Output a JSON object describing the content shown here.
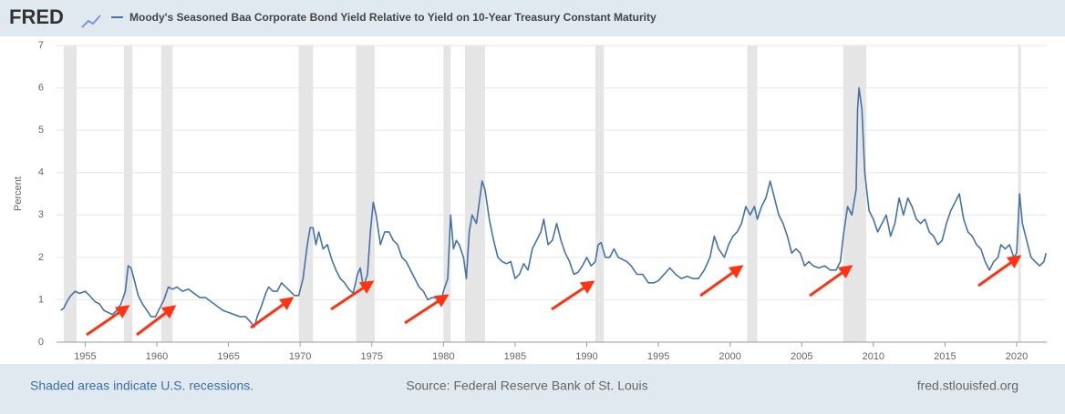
{
  "logo": "FRED",
  "chart_data": {
    "type": "line",
    "title": "Moody's Seasoned Baa Corporate Bond Yield Relative to Yield on 10-Year Treasury Constant Maturity",
    "ylabel": "Percent",
    "color": "#4572a7",
    "recession_color": "#e5e5e5",
    "xlim": [
      1953.0,
      2022.1
    ],
    "ylim": [
      0,
      7
    ],
    "xticks": [
      1955,
      1960,
      1965,
      1970,
      1975,
      1980,
      1985,
      1990,
      1995,
      2000,
      2005,
      2010,
      2015,
      2020
    ],
    "yticks": [
      0,
      1,
      2,
      3,
      4,
      5,
      6,
      7
    ],
    "grid": true,
    "recessions": [
      [
        1953.5,
        1954.4
      ],
      [
        1957.7,
        1958.3
      ],
      [
        1960.3,
        1961.1
      ],
      [
        1969.9,
        1970.9
      ],
      [
        1973.9,
        1975.2
      ],
      [
        1980.0,
        1980.5
      ],
      [
        1981.5,
        1982.9
      ],
      [
        1990.6,
        1991.2
      ],
      [
        2001.2,
        2001.9
      ],
      [
        2007.9,
        2009.5
      ],
      [
        2020.1,
        2020.3
      ]
    ],
    "x": [
      1953.3,
      1953.5,
      1953.8,
      1954.0,
      1954.3,
      1954.6,
      1955.0,
      1955.3,
      1955.7,
      1956.0,
      1956.3,
      1956.6,
      1956.9,
      1957.2,
      1957.5,
      1957.8,
      1958.0,
      1958.2,
      1958.4,
      1958.7,
      1959.0,
      1959.3,
      1959.6,
      1959.9,
      1960.2,
      1960.5,
      1960.8,
      1961.1,
      1961.4,
      1961.8,
      1962.2,
      1962.6,
      1963.0,
      1963.4,
      1963.8,
      1964.2,
      1964.6,
      1965.0,
      1965.4,
      1965.8,
      1966.2,
      1966.6,
      1966.8,
      1967.0,
      1967.3,
      1967.6,
      1967.8,
      1968.1,
      1968.4,
      1968.7,
      1969.0,
      1969.3,
      1969.6,
      1969.9,
      1970.2,
      1970.5,
      1970.7,
      1970.9,
      1971.1,
      1971.3,
      1971.6,
      1971.9,
      1972.2,
      1972.5,
      1972.8,
      1973.1,
      1973.4,
      1973.7,
      1974.0,
      1974.2,
      1974.4,
      1974.7,
      1974.9,
      1975.1,
      1975.3,
      1975.6,
      1975.9,
      1976.2,
      1976.5,
      1976.8,
      1977.1,
      1977.4,
      1977.7,
      1978.0,
      1978.3,
      1978.6,
      1978.9,
      1979.2,
      1979.5,
      1979.8,
      1980.0,
      1980.3,
      1980.5,
      1980.7,
      1980.9,
      1981.1,
      1981.4,
      1981.6,
      1981.8,
      1982.0,
      1982.3,
      1982.5,
      1982.7,
      1982.9,
      1983.2,
      1983.5,
      1983.8,
      1984.1,
      1984.4,
      1984.7,
      1985.0,
      1985.3,
      1985.6,
      1985.9,
      1986.2,
      1986.5,
      1986.8,
      1987.0,
      1987.3,
      1987.6,
      1987.9,
      1988.2,
      1988.5,
      1988.8,
      1989.1,
      1989.4,
      1989.7,
      1990.0,
      1990.3,
      1990.6,
      1990.8,
      1991.0,
      1991.3,
      1991.6,
      1991.9,
      1992.2,
      1992.5,
      1992.8,
      1993.1,
      1993.5,
      1993.9,
      1994.3,
      1994.7,
      1995.0,
      1995.4,
      1995.8,
      1996.2,
      1996.6,
      1997.0,
      1997.4,
      1997.8,
      1998.2,
      1998.6,
      1998.9,
      1999.2,
      1999.6,
      1999.9,
      2000.2,
      2000.5,
      2000.8,
      2001.1,
      2001.4,
      2001.7,
      2001.9,
      2002.2,
      2002.5,
      2002.8,
      2003.1,
      2003.4,
      2003.7,
      2004.0,
      2004.3,
      2004.6,
      2004.9,
      2005.2,
      2005.5,
      2005.8,
      2006.2,
      2006.6,
      2007.0,
      2007.4,
      2007.7,
      2007.9,
      2008.2,
      2008.5,
      2008.8,
      2008.9,
      2009.0,
      2009.2,
      2009.4,
      2009.7,
      2010.0,
      2010.3,
      2010.6,
      2010.9,
      2011.2,
      2011.5,
      2011.8,
      2012.1,
      2012.4,
      2012.7,
      2013.0,
      2013.3,
      2013.6,
      2013.9,
      2014.2,
      2014.5,
      2014.8,
      2015.1,
      2015.4,
      2015.7,
      2016.0,
      2016.3,
      2016.6,
      2016.9,
      2017.2,
      2017.5,
      2017.8,
      2018.1,
      2018.4,
      2018.7,
      2018.9,
      2019.2,
      2019.5,
      2019.8,
      2020.0,
      2020.2,
      2020.4,
      2020.7,
      2021.0,
      2021.3,
      2021.6,
      2021.9,
      2022.05
    ],
    "values": [
      0.75,
      0.8,
      1.0,
      1.1,
      1.2,
      1.15,
      1.2,
      1.1,
      0.95,
      0.9,
      0.75,
      0.7,
      0.65,
      0.75,
      0.9,
      1.2,
      1.8,
      1.75,
      1.5,
      1.1,
      0.9,
      0.75,
      0.6,
      0.6,
      0.8,
      1.0,
      1.3,
      1.25,
      1.3,
      1.2,
      1.25,
      1.15,
      1.05,
      1.05,
      0.95,
      0.85,
      0.75,
      0.7,
      0.65,
      0.6,
      0.6,
      0.45,
      0.35,
      0.6,
      0.85,
      1.15,
      1.3,
      1.2,
      1.2,
      1.4,
      1.3,
      1.2,
      1.1,
      1.1,
      1.5,
      2.3,
      2.7,
      2.7,
      2.3,
      2.6,
      2.2,
      2.3,
      1.95,
      1.7,
      1.5,
      1.4,
      1.25,
      1.15,
      1.6,
      1.75,
      1.3,
      1.6,
      2.6,
      3.3,
      3.0,
      2.3,
      2.6,
      2.6,
      2.4,
      2.3,
      2.0,
      1.9,
      1.7,
      1.5,
      1.3,
      1.2,
      1.0,
      1.05,
      1.05,
      0.9,
      1.2,
      1.5,
      3.0,
      2.2,
      2.4,
      2.3,
      2.0,
      1.5,
      2.6,
      3.0,
      2.8,
      3.3,
      3.8,
      3.6,
      2.9,
      2.4,
      2.0,
      1.9,
      1.85,
      1.9,
      1.5,
      1.6,
      1.85,
      1.7,
      2.2,
      2.4,
      2.6,
      2.9,
      2.3,
      2.4,
      2.8,
      2.4,
      2.1,
      1.9,
      1.6,
      1.65,
      1.8,
      2.0,
      1.8,
      1.9,
      2.3,
      2.35,
      2.0,
      2.0,
      2.2,
      2.0,
      1.95,
      1.9,
      1.8,
      1.6,
      1.6,
      1.4,
      1.4,
      1.45,
      1.6,
      1.75,
      1.6,
      1.5,
      1.55,
      1.5,
      1.5,
      1.7,
      2.0,
      2.5,
      2.2,
      2.0,
      2.3,
      2.5,
      2.6,
      2.8,
      3.2,
      3.0,
      3.2,
      2.9,
      3.2,
      3.4,
      3.8,
      3.4,
      3.0,
      2.8,
      2.5,
      2.1,
      2.2,
      2.1,
      1.8,
      1.9,
      1.8,
      1.75,
      1.8,
      1.7,
      1.7,
      1.9,
      2.5,
      3.2,
      3.0,
      3.6,
      5.5,
      6.0,
      5.5,
      4.0,
      3.1,
      2.9,
      2.6,
      2.8,
      3.0,
      2.5,
      2.8,
      3.4,
      3.0,
      3.4,
      3.2,
      2.9,
      2.8,
      2.9,
      2.6,
      2.5,
      2.3,
      2.4,
      2.8,
      3.1,
      3.3,
      3.5,
      2.9,
      2.6,
      2.5,
      2.3,
      2.2,
      1.9,
      1.7,
      1.9,
      2.0,
      2.3,
      2.2,
      2.3,
      2.0,
      2.1,
      3.5,
      2.8,
      2.4,
      2.0,
      1.9,
      1.8,
      1.9,
      2.1
    ]
  },
  "footer": {
    "note": "Shaded areas indicate U.S. recessions.",
    "source": "Source: Federal Reserve Bank of St. Louis",
    "site": "fred.stlouisfed.org"
  }
}
